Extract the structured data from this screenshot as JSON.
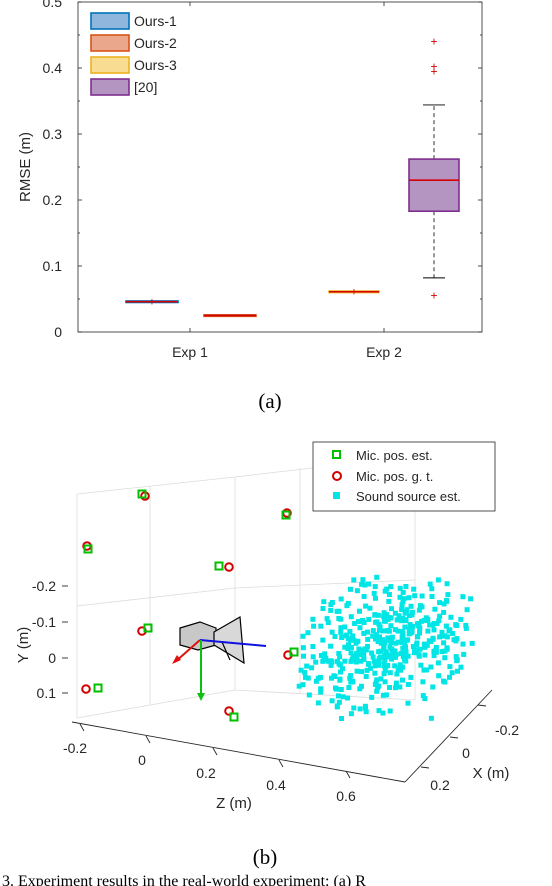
{
  "chart_data": [
    {
      "type": "boxplot",
      "ylabel": "RMSE (m)",
      "ylim": [
        0,
        0.5
      ],
      "yticks": [
        "0",
        "0.1",
        "0.2",
        "0.3",
        "0.4",
        "0.5"
      ],
      "categories": [
        "Exp 1",
        "Exp 2"
      ],
      "legend_position": "top-left",
      "series": [
        {
          "name": "Ours-1",
          "color": "#0072bd",
          "fill": "#8fb6dd",
          "boxes": [
            {
              "category": "Exp 1",
              "median": 0.046,
              "q1": 0.046,
              "q3": 0.047,
              "whisker_low": 0.046,
              "whisker_high": 0.047,
              "outliers": []
            }
          ]
        },
        {
          "name": "Ours-2",
          "color": "#d95319",
          "fill": "#eaa78b",
          "boxes": [
            {
              "category": "Exp 1",
              "median": 0.025,
              "q1": 0.025,
              "q3": 0.026,
              "whisker_low": 0.025,
              "whisker_high": 0.026,
              "outliers": []
            }
          ]
        },
        {
          "name": "Ours-3",
          "color": "#edb120",
          "fill": "#f7dc92",
          "boxes": [
            {
              "category": "Exp 2",
              "median": 0.061,
              "q1": 0.06,
              "q3": 0.062,
              "whisker_low": 0.06,
              "whisker_high": 0.062,
              "outliers": []
            }
          ]
        },
        {
          "name": "[20]",
          "color": "#7e2f8e",
          "fill": "#b494c0",
          "boxes": [
            {
              "category": "Exp 2",
              "median": 0.23,
              "q1": 0.183,
              "q3": 0.262,
              "whisker_low": 0.082,
              "whisker_high": 0.344,
              "outliers": [
                0.055,
                0.395,
                0.402,
                0.44
              ]
            }
          ]
        }
      ],
      "caption": "(a)"
    },
    {
      "type": "scatter3d",
      "xlabel": "Z (m)",
      "ylabel": "Y (m)",
      "zlabel": "X (m)",
      "xticks": [
        "-0.2",
        "0",
        "0.2",
        "0.4",
        "0.6"
      ],
      "yticks": [
        "-0.2",
        "-0.1",
        "0",
        "0.1"
      ],
      "zticks": [
        "-0.2",
        "0",
        "0.2"
      ],
      "legend_position": "top-right",
      "legend": [
        {
          "name": "Mic. pos. est.",
          "marker": "square-open",
          "color": "#00c000"
        },
        {
          "name": "Mic. pos. g. t.",
          "marker": "circle-open",
          "color": "#d40000"
        },
        {
          "name": "Sound source est.",
          "marker": "square-filled",
          "color": "#00e5e5"
        }
      ],
      "caption": "(b)"
    }
  ],
  "footer_text": "3.   Experiment results in the real-world experiment: (a) R"
}
